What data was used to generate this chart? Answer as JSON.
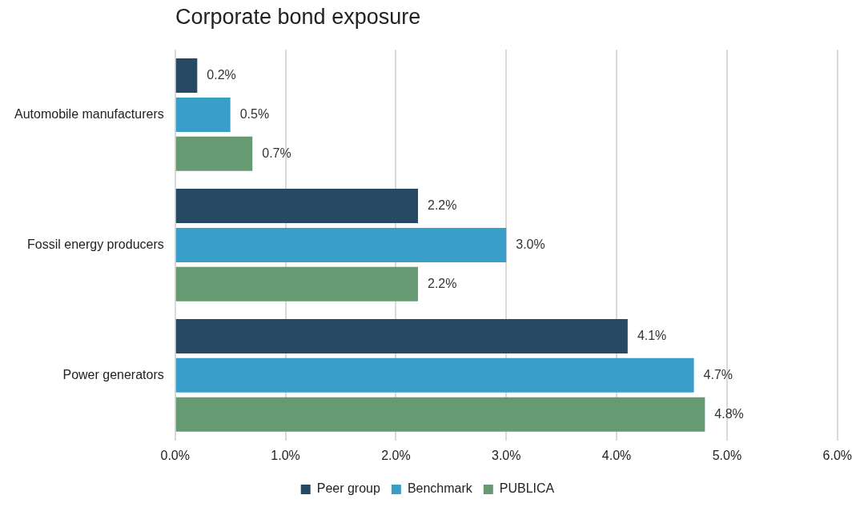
{
  "chart_data": {
    "type": "bar",
    "orientation": "horizontal",
    "title": "Corporate bond exposure",
    "categories": [
      "Automobile manufacturers",
      "Fossil energy producers",
      "Power generators"
    ],
    "series": [
      {
        "name": "Peer group",
        "color": "#264a63",
        "values": [
          0.2,
          2.2,
          4.1
        ],
        "value_labels": [
          "0.2%",
          "2.2%",
          "4.1%"
        ]
      },
      {
        "name": "Benchmark",
        "color": "#3a9fc8",
        "values": [
          0.5,
          3.0,
          4.7
        ],
        "value_labels": [
          "0.5%",
          "3.0%",
          "4.7%"
        ]
      },
      {
        "name": "PUBLICA",
        "color": "#659a73",
        "values": [
          0.7,
          2.2,
          4.8
        ],
        "value_labels": [
          "0.7%",
          "2.2%",
          "4.8%"
        ]
      }
    ],
    "xlim": [
      0,
      6
    ],
    "xticks": [
      {
        "value": 0,
        "label": "0.0%"
      },
      {
        "value": 1,
        "label": "1.0%"
      },
      {
        "value": 2,
        "label": "2.0%"
      },
      {
        "value": 3,
        "label": "3.0%"
      },
      {
        "value": 4,
        "label": "4.0%"
      },
      {
        "value": 5,
        "label": "5.0%"
      },
      {
        "value": 6,
        "label": "6.0%"
      }
    ],
    "grid": "x",
    "legend": "bottom"
  }
}
